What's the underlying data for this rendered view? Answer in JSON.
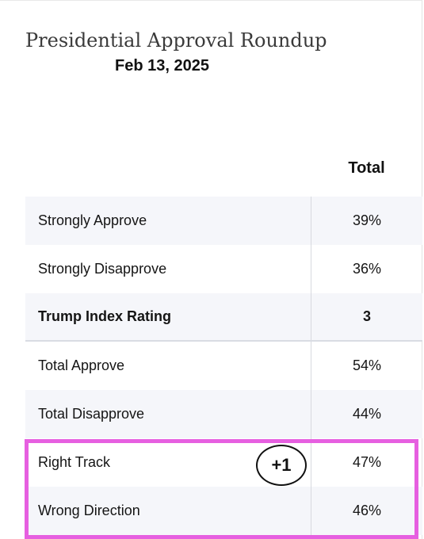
{
  "header": {
    "title": "Presidential Approval Roundup",
    "date": "Feb 13, 2025"
  },
  "table": {
    "column_header": "Total",
    "rows": [
      {
        "label": "Strongly Approve",
        "value": "39%"
      },
      {
        "label": "Strongly Disapprove",
        "value": "36%"
      },
      {
        "label": "Trump Index Rating",
        "value": "3"
      },
      {
        "label": "Total Approve",
        "value": "54%"
      },
      {
        "label": "Total Disapprove",
        "value": "44%"
      },
      {
        "label": "Right Track",
        "value": "47%"
      },
      {
        "label": "Wrong Direction",
        "value": "46%"
      }
    ]
  },
  "annotation": {
    "delta": "+1",
    "highlight_color": "#e65fe0"
  }
}
